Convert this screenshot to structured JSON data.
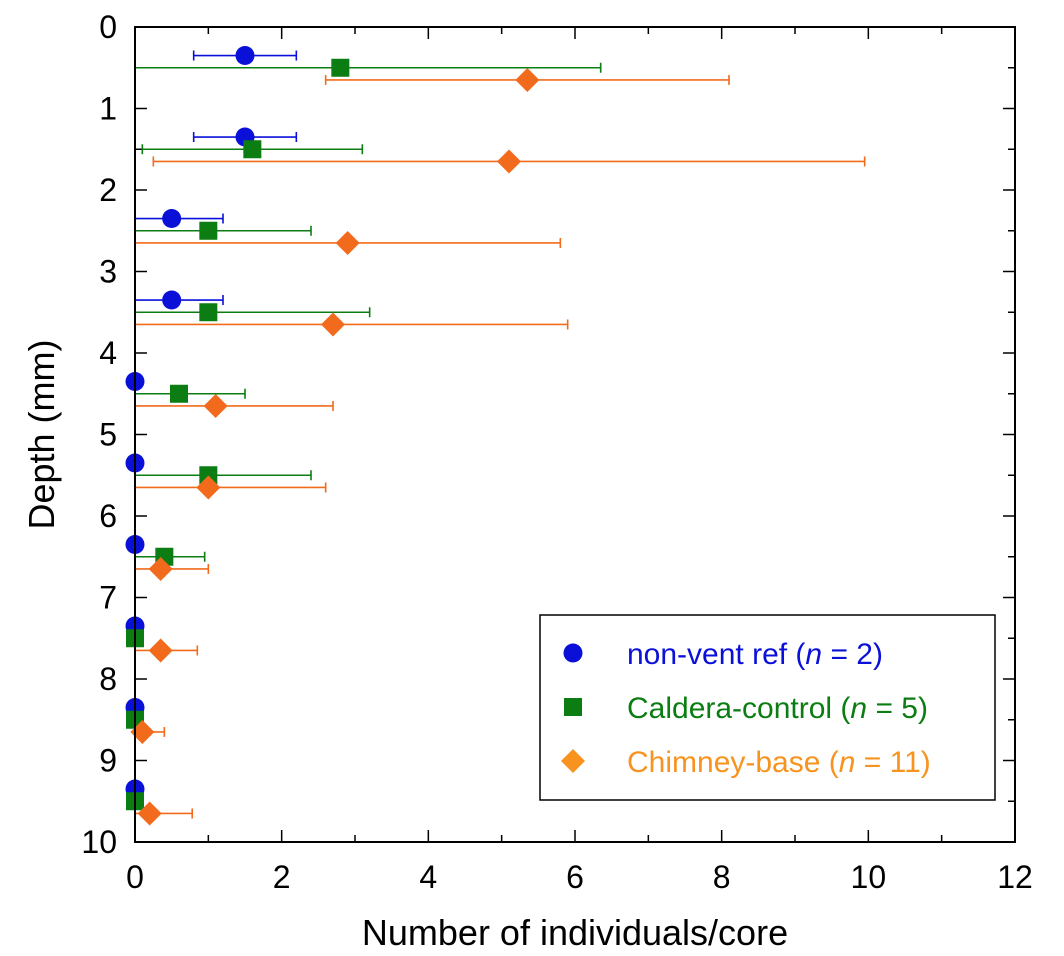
{
  "chart_data": {
    "type": "scatter",
    "title": "",
    "xlabel": "Number of individuals/core",
    "ylabel": "Depth (mm)",
    "xlim": [
      0,
      12
    ],
    "ylim": [
      0,
      10
    ],
    "y_inverted": true,
    "x_ticks": [
      "0",
      "2",
      "4",
      "6",
      "8",
      "10",
      "12"
    ],
    "y_ticks": [
      "0",
      "1",
      "2",
      "3",
      "4",
      "5",
      "6",
      "7",
      "8",
      "9",
      "10"
    ],
    "legend_position": "bottom-right",
    "series": [
      {
        "name": "non-vent ref",
        "legend_prefix": "non-vent ref (",
        "legend_n_label": "n",
        "legend_suffix": " = 2)",
        "color": "#0a10d8",
        "marker": "circle",
        "points": [
          {
            "x": 1.5,
            "y": 0.35,
            "xerr_low": 0.8,
            "xerr_high": 2.2
          },
          {
            "x": 1.5,
            "y": 1.35,
            "xerr_low": 0.8,
            "xerr_high": 2.2
          },
          {
            "x": 0.5,
            "y": 2.35,
            "xerr_low": 0.0,
            "xerr_high": 1.2
          },
          {
            "x": 0.5,
            "y": 3.35,
            "xerr_low": 0.0,
            "xerr_high": 1.2
          },
          {
            "x": 0.0,
            "y": 4.35
          },
          {
            "x": 0.0,
            "y": 5.35
          },
          {
            "x": 0.0,
            "y": 6.35
          },
          {
            "x": 0.0,
            "y": 7.35
          },
          {
            "x": 0.0,
            "y": 8.35
          },
          {
            "x": 0.0,
            "y": 9.35
          }
        ]
      },
      {
        "name": "Caldera-control",
        "legend_prefix": "Caldera-control (",
        "legend_n_label": "n",
        "legend_suffix": " = 5)",
        "color": "#0b7d12",
        "marker": "square",
        "points": [
          {
            "x": 2.8,
            "y": 0.5,
            "xerr_low": 0.0,
            "xerr_high": 6.35
          },
          {
            "x": 1.6,
            "y": 1.5,
            "xerr_low": 0.1,
            "xerr_high": 3.1
          },
          {
            "x": 1.0,
            "y": 2.5,
            "xerr_low": 0.0,
            "xerr_high": 2.4
          },
          {
            "x": 1.0,
            "y": 3.5,
            "xerr_low": 0.0,
            "xerr_high": 3.2
          },
          {
            "x": 0.6,
            "y": 4.5,
            "xerr_low": 0.0,
            "xerr_high": 1.5
          },
          {
            "x": 1.0,
            "y": 5.5,
            "xerr_low": 0.0,
            "xerr_high": 2.4
          },
          {
            "x": 0.4,
            "y": 6.5,
            "xerr_low": 0.0,
            "xerr_high": 0.95
          },
          {
            "x": 0.0,
            "y": 7.5
          },
          {
            "x": 0.0,
            "y": 8.5
          },
          {
            "x": 0.0,
            "y": 9.5
          }
        ]
      },
      {
        "name": "Chimney-base",
        "legend_prefix": "Chimney-base (",
        "legend_n_label": "n",
        "legend_suffix": " = 11)",
        "color": "#f26b1d",
        "legend_color": "#f7931e",
        "marker": "diamond",
        "points": [
          {
            "x": 5.35,
            "y": 0.65,
            "xerr_low": 2.6,
            "xerr_high": 8.1
          },
          {
            "x": 5.1,
            "y": 1.65,
            "xerr_low": 0.25,
            "xerr_high": 9.95
          },
          {
            "x": 2.9,
            "y": 2.65,
            "xerr_low": 0.0,
            "xerr_high": 5.8
          },
          {
            "x": 2.7,
            "y": 3.65,
            "xerr_low": 0.0,
            "xerr_high": 5.9
          },
          {
            "x": 1.1,
            "y": 4.65,
            "xerr_low": 0.0,
            "xerr_high": 2.7
          },
          {
            "x": 1.0,
            "y": 5.65,
            "xerr_low": 0.0,
            "xerr_high": 2.6
          },
          {
            "x": 0.35,
            "y": 6.65,
            "xerr_low": 0.0,
            "xerr_high": 1.0
          },
          {
            "x": 0.35,
            "y": 7.65,
            "xerr_low": 0.0,
            "xerr_high": 0.85
          },
          {
            "x": 0.1,
            "y": 8.65,
            "xerr_low": 0.0,
            "xerr_high": 0.4
          },
          {
            "x": 0.2,
            "y": 9.65,
            "xerr_low": 0.0,
            "xerr_high": 0.78
          }
        ]
      }
    ]
  }
}
